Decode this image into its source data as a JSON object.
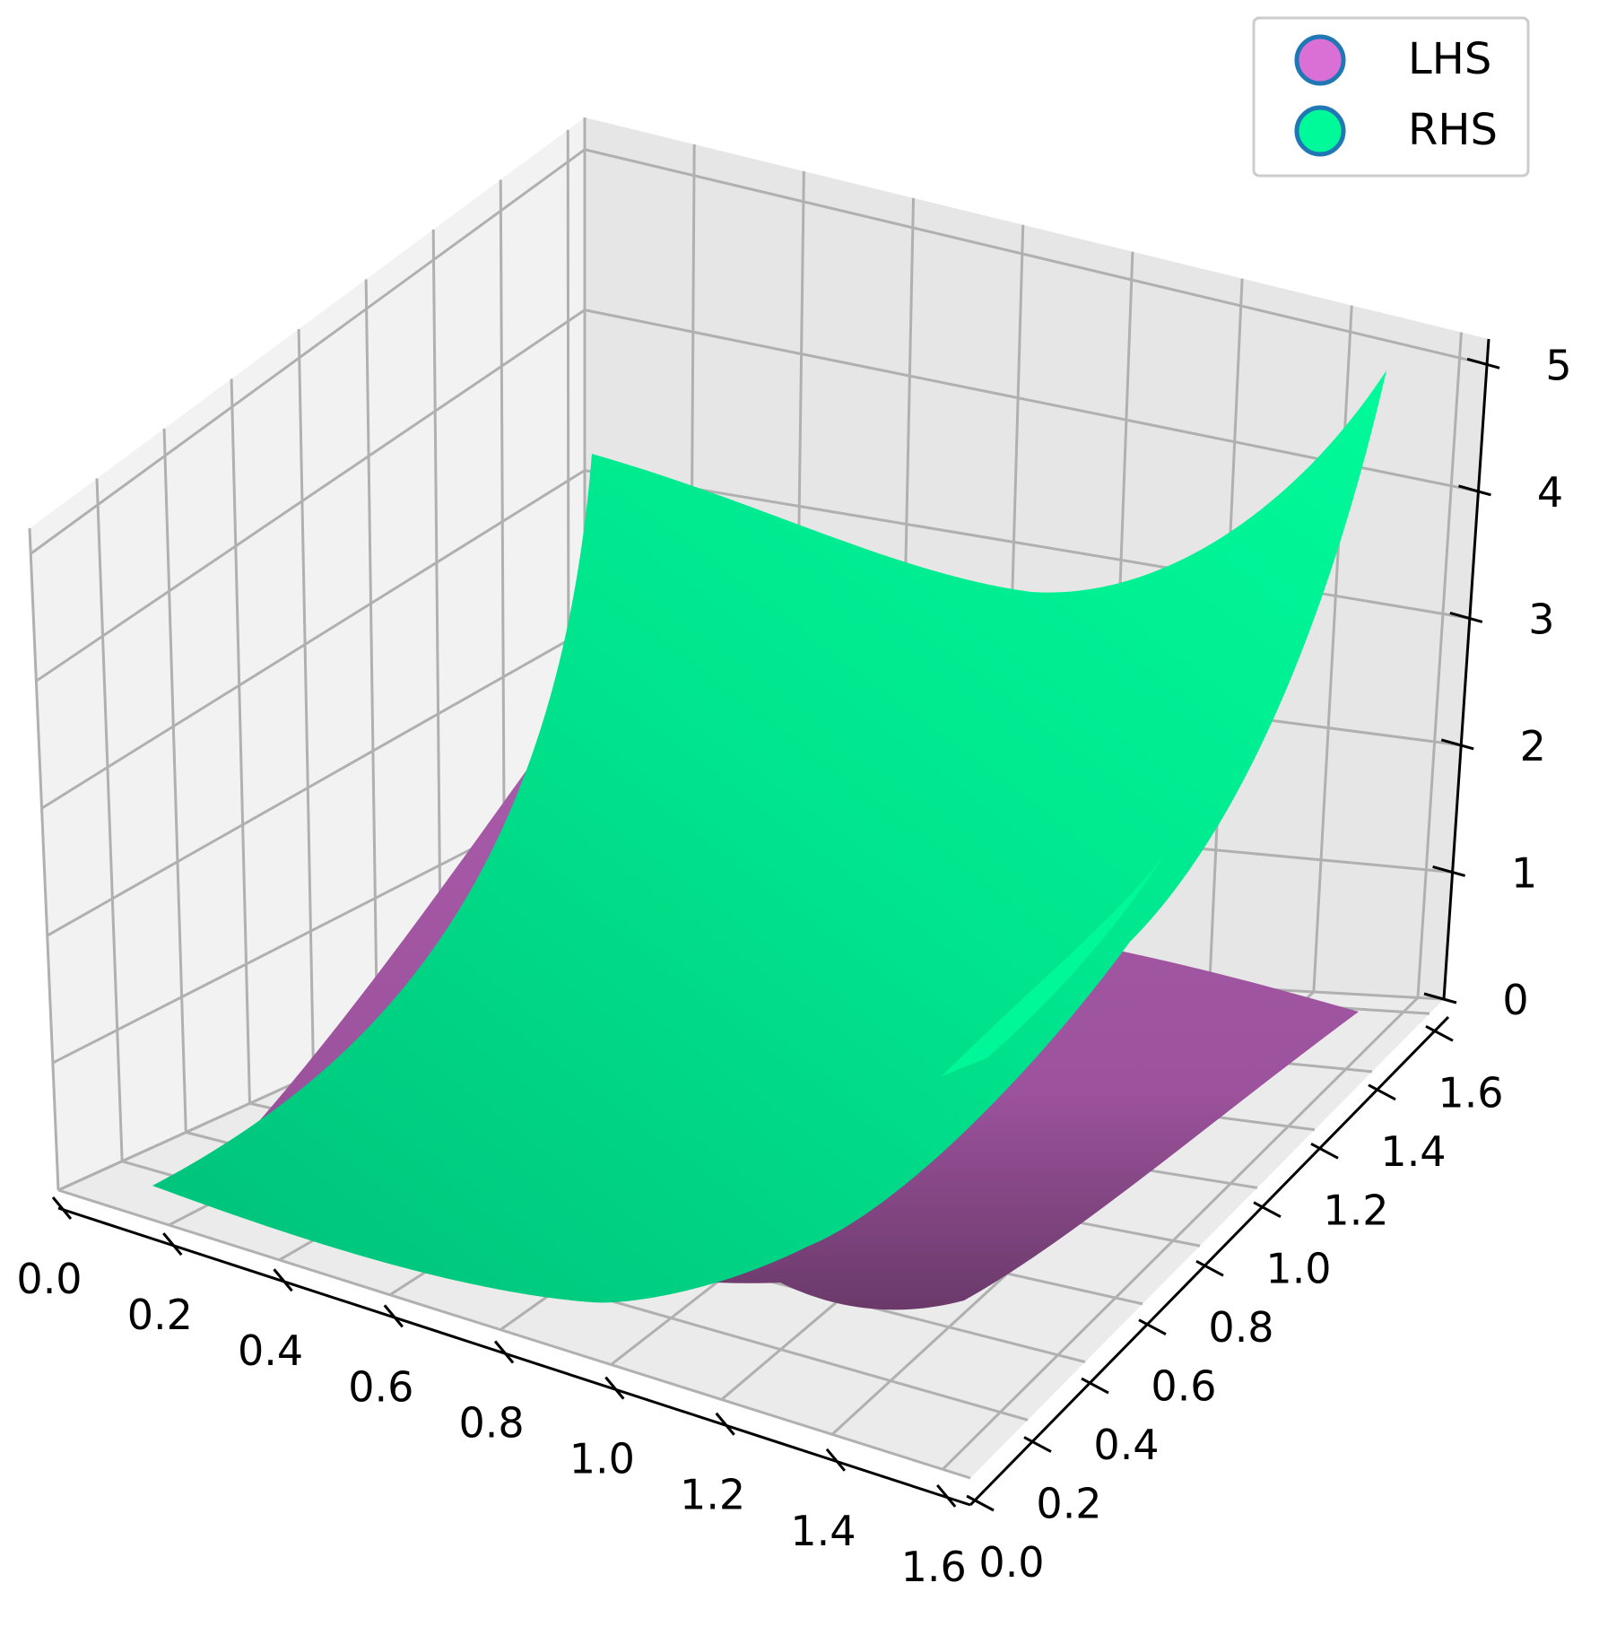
{
  "chart_data": {
    "type": "surface",
    "title": "",
    "xlabel": "",
    "ylabel": "",
    "zlabel": "",
    "x_ticks": [
      "0.0",
      "0.2",
      "0.4",
      "0.6",
      "0.8",
      "1.0",
      "1.2",
      "1.4",
      "1.6"
    ],
    "y_ticks": [
      "0.0",
      "0.2",
      "0.4",
      "0.6",
      "0.8",
      "1.0",
      "1.2",
      "1.4",
      "1.6"
    ],
    "z_ticks": [
      "0",
      "1",
      "2",
      "3",
      "4",
      "5"
    ],
    "xlim": [
      0,
      1.65
    ],
    "ylim": [
      0,
      1.65
    ],
    "zlim": [
      0,
      5.2
    ],
    "grid": true,
    "legend_position": "top-right",
    "series": [
      {
        "name": "LHS",
        "color": "#DA70D6",
        "corner_values": {
          "x0_y0": 0.0,
          "x1.6_y0": 0.5,
          "x0_y1.6": 0.4,
          "x1.6_y1.6": 0.0
        }
      },
      {
        "name": "RHS",
        "color": "#00FA9A",
        "corner_values": {
          "x0_y0": 0.0,
          "x1.6_y0": 0.5,
          "x0_y1.6": 4.7,
          "x1.6_y1.6": 4.9
        }
      }
    ],
    "legend": {
      "entries": [
        {
          "label": "LHS",
          "color": "#DA70D6",
          "edge": "#1f77b4"
        },
        {
          "label": "RHS",
          "color": "#00FA9A",
          "edge": "#1f77b4"
        }
      ]
    }
  }
}
